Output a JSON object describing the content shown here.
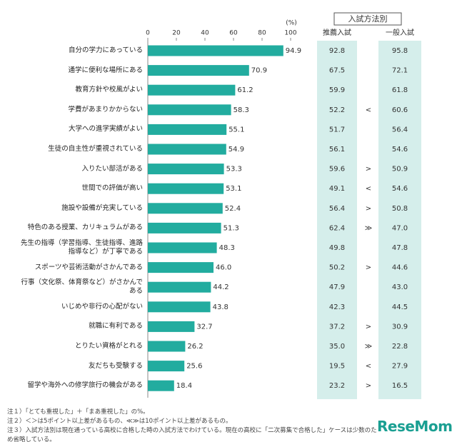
{
  "chart_data": {
    "type": "bar",
    "orientation": "horizontal",
    "unit_label": "(%)",
    "categories": [
      "自分の学力にあっている",
      "通学に便利な場所にある",
      "教育方針や校風がよい",
      "学費があまりかからない",
      "大学への進学実績がよい",
      "生徒の自主性が重視されている",
      "入りたい部活がある",
      "世間での評価が高い",
      "施設や設備が充実している",
      "特色のある授業、カリキュラムがある",
      "先生の指導（学習指導、生徒指導、進路指導など）が丁寧である",
      "スポーツや芸術活動がさかんである",
      "行事（文化祭、体育祭など）がさかんである",
      "いじめや非行の心配がない",
      "就職に有利である",
      "とりたい資格がとれる",
      "友だちも受験する",
      "留学や海外への修学旅行の機会がある"
    ],
    "values": [
      94.9,
      70.9,
      61.2,
      58.3,
      55.1,
      54.9,
      53.3,
      53.1,
      52.4,
      51.3,
      48.3,
      46,
      44.2,
      43.8,
      32.7,
      26.2,
      25.6,
      18.4
    ],
    "value_labels": [
      "94.9",
      "70.9",
      "61.2",
      "58.3",
      "55.1",
      "54.9",
      "53.3",
      "53.1",
      "52.4",
      "51.3",
      "48.3",
      "46.0",
      "44.2",
      "43.8",
      "32.7",
      "26.2",
      "25.6",
      "18.4"
    ],
    "color": "#22ac9f",
    "xlim": [
      0,
      100
    ],
    "xticks": [
      0,
      20,
      40,
      60,
      80,
      100
    ]
  },
  "side_table": {
    "title": "入試方法別",
    "columns": [
      "推薦入試",
      "一般入試"
    ],
    "recommend": [
      "92.8",
      "67.5",
      "59.9",
      "52.2",
      "51.7",
      "56.1",
      "59.6",
      "49.1",
      "56.4",
      "62.4",
      "49.8",
      "50.2",
      "47.9",
      "42.3",
      "37.2",
      "35.0",
      "19.5",
      "23.2"
    ],
    "comparison": [
      null,
      null,
      null,
      "<",
      null,
      null,
      ">",
      "<",
      ">",
      "≫",
      null,
      ">",
      null,
      null,
      ">",
      "≫",
      "<",
      ">"
    ],
    "general": [
      "95.8",
      "72.1",
      "61.8",
      "60.6",
      "56.4",
      "54.6",
      "50.9",
      "54.6",
      "50.8",
      "47.0",
      "47.8",
      "44.6",
      "43.0",
      "44.5",
      "30.9",
      "22.8",
      "27.9",
      "16.5"
    ]
  },
  "notes": [
    "注１）「とても重視した」＋「まあ重視した」の%。",
    "注２）＜＞は5ポイント以上差があるもの、≪≫は10ポイント以上差があるもの。",
    "注３）入試方法別は現在通っている高校に合格した時の入試方法でわけている。現在の高校に「二次募集で合格した」ケースは少数のため省略している。"
  ],
  "logo": "ReseMom"
}
